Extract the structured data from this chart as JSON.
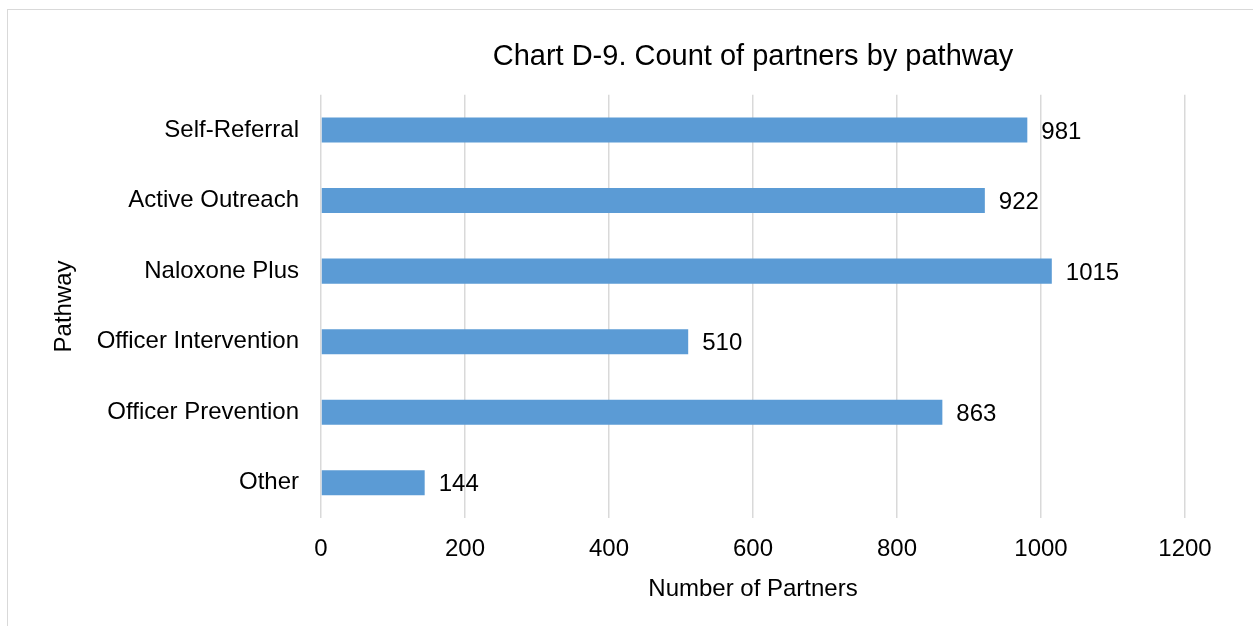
{
  "chart_data": {
    "type": "bar",
    "orientation": "horizontal",
    "title": "Chart D-9. Count of partners by pathway",
    "xlabel": "Number of Partners",
    "ylabel": "Pathway",
    "categories": [
      "Self-Referral",
      "Active Outreach",
      "Naloxone Plus",
      "Officer Intervention",
      "Officer Prevention",
      "Other"
    ],
    "values": [
      981,
      922,
      1015,
      510,
      863,
      144
    ],
    "color": "#5b9bd5",
    "xlim": [
      0,
      1200
    ],
    "xticks": [
      0,
      200,
      400,
      600,
      800,
      1000,
      1200
    ],
    "grid": "x",
    "data_labels": true
  }
}
